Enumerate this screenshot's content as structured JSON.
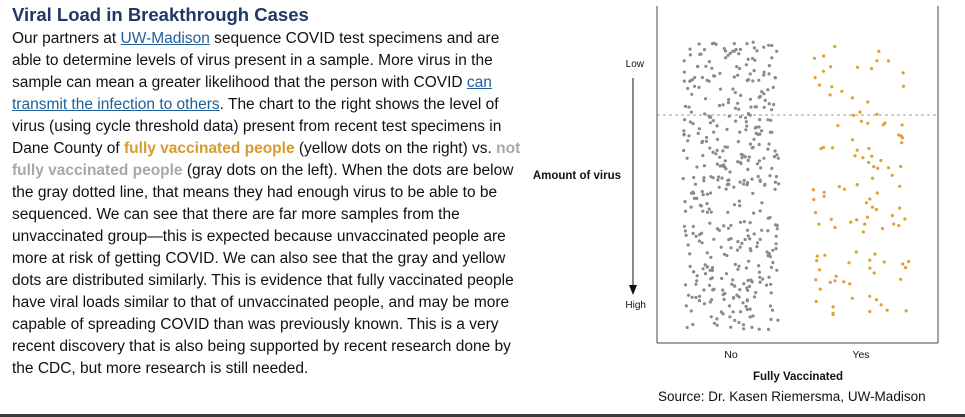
{
  "title": "Viral Load in Breakthrough Cases",
  "body": {
    "t1": "Our partners at ",
    "link1": "UW-Madison",
    "t2": " sequence COVID test specimens and are able to determine levels of virus present in a sample. More virus in the sample can mean a greater likelihood that the person with COVID ",
    "link2": "can transmit the infection to others",
    "t3": ". The chart to the right shows the level of virus (using cycle threshold data) present from recent test specimens in Dane County of ",
    "vax_phrase": "fully vaccinated people",
    "t4": " (yellow dots on the right) vs. ",
    "unvax_phrase": "not fully vaccinated people",
    "t5": " (gray dots on the left). When the dots are below the gray dotted line, that means they had enough virus to be able to be sequenced. We can see that there are far more samples from the unvaccinated group—this is expected because unvaccinated people are more at risk of getting COVID. We can also see that the gray and yellow dots are distributed similarly. This is evidence that fully vaccinated people have viral loads similar to that of unvaccinated people, and may be more capable of spreading COVID than was previously known. This is a very recent discovery that is also being supported by recent research done by the CDC, but more research is still needed."
  },
  "source": "Source: Dr. Kasen Riemersma, UW-Madison",
  "chart_data": {
    "type": "scatter",
    "categories": [
      "No",
      "Yes"
    ],
    "xlabel": "Fully Vaccinated",
    "ylabel": "Amount of virus",
    "y_top_label": "Low",
    "y_bottom_label": "High",
    "threshold_line": "dotted horizontal line (gray)",
    "colors": {
      "unvaccinated": "#8a8a8a",
      "vaccinated": "#e0a030",
      "threshold": "#9a9a9a"
    },
    "series": [
      {
        "category": "No",
        "approx_count": 420
      },
      {
        "category": "Yes",
        "approx_count": 110
      }
    ]
  }
}
